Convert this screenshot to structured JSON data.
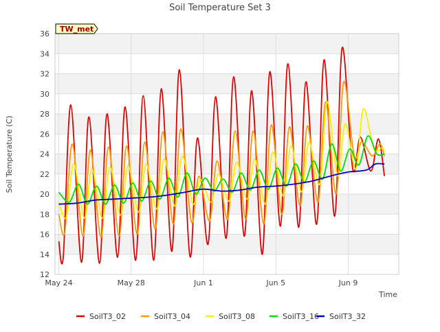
{
  "chart_data": {
    "type": "line",
    "title": "Soil Temperature Set 3",
    "xlabel": "Time",
    "ylabel": "Soil Temperature (C)",
    "ylim": [
      12,
      36
    ],
    "xlim": [
      "2024-05-23T19:00",
      "2024-06-11T19:00"
    ],
    "yticks": [
      12,
      14,
      16,
      18,
      20,
      22,
      24,
      26,
      28,
      30,
      32,
      34,
      36
    ],
    "xticks": [
      {
        "label": "May 24",
        "date": "2024-05-24T00:00"
      },
      {
        "label": "May 28",
        "date": "2024-05-28T00:00"
      },
      {
        "label": "Jun 1",
        "date": "2024-06-01T00:00"
      },
      {
        "label": "Jun 5",
        "date": "2024-06-05T00:00"
      },
      {
        "label": "Jun 9",
        "date": "2024-06-09T00:00"
      }
    ],
    "grid": true,
    "legend_position": "bottom",
    "annotation": "TW_met",
    "series": [
      {
        "name": "SoilT3_02",
        "color": "#dd0000",
        "x": [
          "2024-05-24T00:00",
          "2024-05-24T06:00",
          "2024-05-24T16:00",
          "2024-05-25T06:00",
          "2024-05-25T16:00",
          "2024-05-26T06:00",
          "2024-05-26T16:00",
          "2024-05-27T06:00",
          "2024-05-27T16:00",
          "2024-05-28T06:00",
          "2024-05-28T16:00",
          "2024-05-29T06:00",
          "2024-05-29T16:00",
          "2024-05-30T06:00",
          "2024-05-30T16:00",
          "2024-05-31T06:00",
          "2024-05-31T16:00",
          "2024-06-01T06:00",
          "2024-06-01T16:00",
          "2024-06-02T06:00",
          "2024-06-02T16:00",
          "2024-06-03T06:00",
          "2024-06-03T16:00",
          "2024-06-04T06:00",
          "2024-06-04T16:00",
          "2024-06-05T06:00",
          "2024-06-05T16:00",
          "2024-06-06T06:00",
          "2024-06-06T16:00",
          "2024-06-07T06:00",
          "2024-06-07T16:00",
          "2024-06-08T06:00",
          "2024-06-08T16:00",
          "2024-06-09T06:00",
          "2024-06-09T16:00",
          "2024-06-10T06:00",
          "2024-06-10T16:00",
          "2024-06-11T00:00"
        ],
        "y": [
          15.3,
          13.8,
          28.9,
          13.2,
          27.7,
          13.1,
          28.0,
          13.7,
          28.7,
          13.4,
          29.8,
          13.4,
          30.5,
          14.3,
          32.4,
          13.8,
          25.6,
          15.0,
          29.7,
          15.6,
          31.7,
          15.8,
          30.3,
          14.0,
          32.2,
          16.8,
          33.0,
          16.7,
          31.2,
          17.0,
          33.4,
          17.8,
          34.6,
          22.5,
          25.7,
          22.3,
          25.5,
          21.8
        ]
      },
      {
        "name": "SoilT3_04",
        "color": "#ff9900",
        "x": [
          "2024-05-24T00:00",
          "2024-05-24T08:00",
          "2024-05-24T18:00",
          "2024-05-25T08:00",
          "2024-05-25T18:00",
          "2024-05-26T08:00",
          "2024-05-26T18:00",
          "2024-05-27T08:00",
          "2024-05-27T18:00",
          "2024-05-28T08:00",
          "2024-05-28T18:00",
          "2024-05-29T08:00",
          "2024-05-29T18:00",
          "2024-05-30T08:00",
          "2024-05-30T18:00",
          "2024-05-31T08:00",
          "2024-05-31T18:00",
          "2024-06-01T08:00",
          "2024-06-01T18:00",
          "2024-06-02T08:00",
          "2024-06-02T18:00",
          "2024-06-03T08:00",
          "2024-06-03T18:00",
          "2024-06-04T08:00",
          "2024-06-04T18:00",
          "2024-06-05T08:00",
          "2024-06-05T18:00",
          "2024-06-06T08:00",
          "2024-06-06T18:00",
          "2024-06-07T08:00",
          "2024-06-07T18:00",
          "2024-06-08T08:00",
          "2024-06-08T18:00",
          "2024-06-09T08:00",
          "2024-06-09T18:00",
          "2024-06-10T08:00",
          "2024-06-10T18:00",
          "2024-06-11T00:00"
        ],
        "y": [
          18.0,
          16.2,
          25.0,
          15.8,
          24.4,
          15.7,
          24.7,
          15.8,
          24.8,
          16.0,
          25.2,
          16.5,
          26.2,
          17.0,
          26.5,
          17.2,
          21.8,
          17.3,
          23.3,
          17.5,
          26.3,
          17.5,
          26.3,
          17.0,
          26.9,
          18.0,
          26.7,
          18.8,
          26.8,
          19.2,
          29.2,
          20.0,
          31.2,
          23.8,
          25.2,
          23.8,
          25.0,
          23.8
        ]
      },
      {
        "name": "SoilT3_08",
        "color": "#ffee00",
        "x": [
          "2024-05-24T00:00",
          "2024-05-24T10:00",
          "2024-05-24T20:00",
          "2024-05-25T10:00",
          "2024-05-25T20:00",
          "2024-05-26T10:00",
          "2024-05-26T20:00",
          "2024-05-27T10:00",
          "2024-05-27T20:00",
          "2024-05-28T10:00",
          "2024-05-28T20:00",
          "2024-05-29T10:00",
          "2024-05-29T20:00",
          "2024-05-30T10:00",
          "2024-05-30T20:00",
          "2024-05-31T10:00",
          "2024-05-31T20:00",
          "2024-06-01T10:00",
          "2024-06-01T20:00",
          "2024-06-02T10:00",
          "2024-06-02T20:00",
          "2024-06-03T10:00",
          "2024-06-03T20:00",
          "2024-06-04T10:00",
          "2024-06-04T20:00",
          "2024-06-05T10:00",
          "2024-06-05T20:00",
          "2024-06-06T10:00",
          "2024-06-06T20:00",
          "2024-06-07T10:00",
          "2024-06-07T20:00",
          "2024-06-08T10:00",
          "2024-06-08T20:00",
          "2024-06-09T10:00",
          "2024-06-09T20:00",
          "2024-06-10T10:00",
          "2024-06-10T20:00",
          "2024-06-11T00:00"
        ],
        "y": [
          19.2,
          17.7,
          23.0,
          17.6,
          22.5,
          17.6,
          22.7,
          17.9,
          22.8,
          18.2,
          23.0,
          18.5,
          23.5,
          18.8,
          23.8,
          19.0,
          21.5,
          19.2,
          22.0,
          19.3,
          23.2,
          19.5,
          23.5,
          19.0,
          24.2,
          19.8,
          24.8,
          20.2,
          25.2,
          21.0,
          29.2,
          21.8,
          27.0,
          22.5,
          28.5,
          24.5,
          24.6,
          24.3
        ]
      },
      {
        "name": "SoilT3_16",
        "color": "#00dd00",
        "x": [
          "2024-05-24T00:00",
          "2024-05-24T14:00",
          "2024-05-25T02:00",
          "2024-05-25T14:00",
          "2024-05-26T02:00",
          "2024-05-26T14:00",
          "2024-05-27T02:00",
          "2024-05-27T14:00",
          "2024-05-28T02:00",
          "2024-05-28T14:00",
          "2024-05-29T02:00",
          "2024-05-29T14:00",
          "2024-05-30T02:00",
          "2024-05-30T14:00",
          "2024-05-31T02:00",
          "2024-05-31T14:00",
          "2024-06-01T02:00",
          "2024-06-01T14:00",
          "2024-06-02T02:00",
          "2024-06-02T14:00",
          "2024-06-03T02:00",
          "2024-06-03T14:00",
          "2024-06-04T02:00",
          "2024-06-04T14:00",
          "2024-06-05T02:00",
          "2024-06-05T14:00",
          "2024-06-06T02:00",
          "2024-06-06T14:00",
          "2024-06-07T02:00",
          "2024-06-07T14:00",
          "2024-06-08T02:00",
          "2024-06-08T14:00",
          "2024-06-09T02:00",
          "2024-06-09T14:00",
          "2024-06-10T02:00",
          "2024-06-10T14:00",
          "2024-06-11T00:00"
        ],
        "y": [
          20.2,
          19.2,
          21.0,
          19.0,
          20.8,
          19.0,
          20.9,
          19.1,
          21.1,
          19.3,
          21.3,
          19.5,
          21.6,
          19.7,
          22.1,
          20.0,
          21.6,
          20.3,
          21.5,
          20.2,
          22.1,
          20.4,
          22.4,
          20.5,
          22.6,
          20.8,
          23.0,
          21.2,
          23.3,
          21.5,
          25.0,
          22.3,
          24.5,
          22.9,
          25.8,
          24.0,
          24.0
        ]
      },
      {
        "name": "SoilT3_32",
        "color": "#0000bb",
        "x": [
          "2024-05-24T00:00",
          "2024-05-25T00:00",
          "2024-05-26T00:00",
          "2024-05-27T00:00",
          "2024-05-28T00:00",
          "2024-05-29T00:00",
          "2024-05-30T00:00",
          "2024-05-31T00:00",
          "2024-06-01T00:00",
          "2024-06-02T00:00",
          "2024-06-03T00:00",
          "2024-06-04T00:00",
          "2024-06-05T00:00",
          "2024-06-06T00:00",
          "2024-06-07T00:00",
          "2024-06-08T00:00",
          "2024-06-09T00:00",
          "2024-06-10T00:00",
          "2024-06-10T12:00",
          "2024-06-11T00:00"
        ],
        "y": [
          19.0,
          19.1,
          19.4,
          19.5,
          19.6,
          19.7,
          19.9,
          20.2,
          20.5,
          20.3,
          20.4,
          20.7,
          20.8,
          21.0,
          21.3,
          21.8,
          22.2,
          22.4,
          23.0,
          23.0
        ]
      }
    ]
  }
}
